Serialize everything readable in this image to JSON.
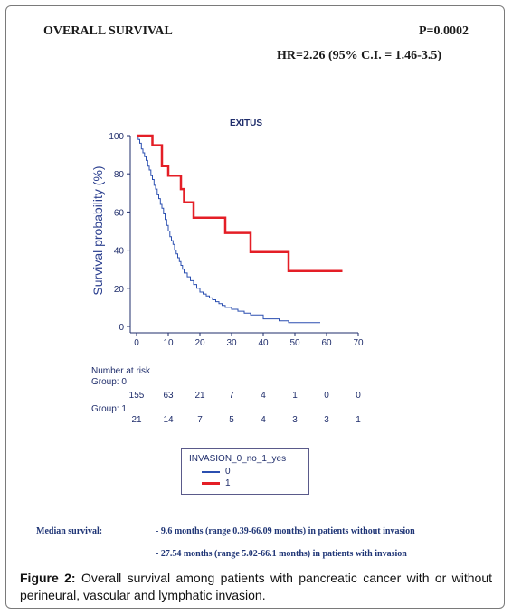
{
  "header": {
    "title": "OVERALL SURVIVAL",
    "p_value": "P=0.0002",
    "hazard_ratio": "HR=2.26 (95% C.I. = 1.46-3.5)"
  },
  "chart_data": {
    "type": "line",
    "title": "EXITUS",
    "xlabel": "",
    "ylabel": "Survival probability (%)",
    "xlim": [
      0,
      70
    ],
    "ylim": [
      0,
      100
    ],
    "xticks": [
      0,
      10,
      20,
      30,
      40,
      50,
      60,
      70
    ],
    "yticks": [
      0,
      20,
      40,
      60,
      80,
      100
    ],
    "grid": false,
    "colors": {
      "group0": "#2b4fb0",
      "group1": "#e41e26",
      "axis": "#1f2d6b"
    },
    "series": [
      {
        "name": "0",
        "step": true,
        "x": [
          0,
          0.5,
          1,
          1.5,
          2,
          2.5,
          3,
          3.5,
          4,
          4.5,
          5,
          5.5,
          6,
          6.5,
          7,
          7.5,
          8,
          8.5,
          9,
          9.5,
          10,
          10.5,
          11,
          11.5,
          12,
          12.5,
          13,
          13.5,
          14,
          14.5,
          15,
          16,
          17,
          18,
          19,
          20,
          21,
          22,
          23,
          24,
          25,
          26,
          27,
          28,
          30,
          32,
          34,
          36,
          40,
          45,
          48,
          58
        ],
        "y": [
          100,
          98,
          96,
          93,
          91,
          89,
          87,
          84,
          82,
          79,
          77,
          74,
          72,
          69,
          67,
          64,
          62,
          59,
          56,
          53,
          50,
          47,
          45,
          43,
          40,
          38,
          36,
          34,
          32,
          30,
          28,
          26,
          24,
          22,
          20,
          18,
          17,
          16,
          15,
          14,
          13,
          12,
          11,
          10,
          9,
          8,
          7,
          6,
          4,
          3,
          2,
          2
        ]
      },
      {
        "name": "1",
        "step": true,
        "x": [
          0,
          5,
          8,
          10,
          14,
          15,
          18,
          28,
          36,
          48,
          65
        ],
        "y": [
          100,
          95,
          84,
          79,
          72,
          65,
          57,
          49,
          39,
          29,
          29
        ]
      }
    ],
    "risk_table": {
      "heading": "Number at risk",
      "groups": [
        {
          "label": "Group: 0",
          "values": [
            "155",
            "63",
            "21",
            "7",
            "4",
            "1",
            "0",
            "0"
          ]
        },
        {
          "label": "Group: 1",
          "values": [
            "21",
            "14",
            "7",
            "5",
            "4",
            "3",
            "3",
            "1"
          ]
        }
      ]
    },
    "legend": {
      "title": "INVASION_0_no_1_yes",
      "entries": [
        "0",
        "1"
      ],
      "placement": "bottom-center"
    }
  },
  "median": {
    "label": "Median survival:",
    "line1": "- 9.6 months (range 0.39-66.09 months) in  patients without invasion",
    "line2": "-  27.54 months (range 5.02-66.1 months) in patients with invasion"
  },
  "caption": {
    "label": "Figure 2:",
    "text": " Overall survival among patients with pancreatic cancer with or without perineural, vascular and lymphatic invasion."
  }
}
